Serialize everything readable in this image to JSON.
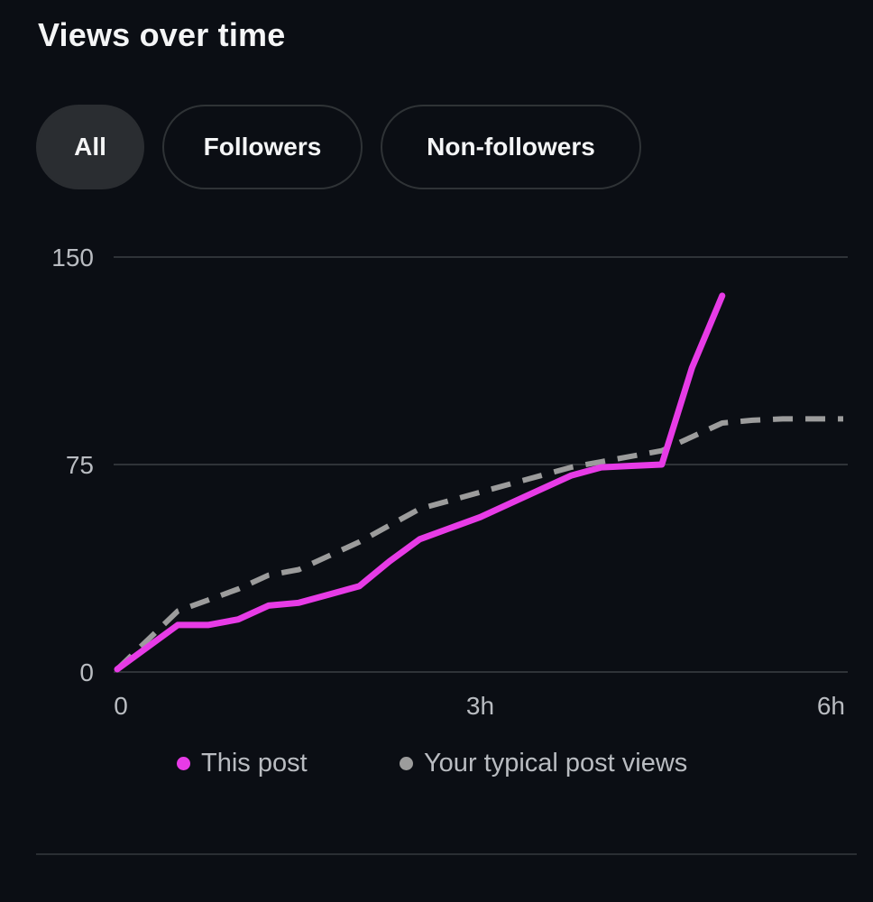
{
  "header": {
    "title": "Views over time"
  },
  "tabs": [
    {
      "label": "All",
      "active": true
    },
    {
      "label": "Followers",
      "active": false
    },
    {
      "label": "Non-followers",
      "active": false
    }
  ],
  "colors": {
    "this_post": "#e73be6",
    "typical": "#9c9c9c",
    "grid": "#2f3338",
    "tick_text": "#b9bcc1",
    "background": "#0b0e14"
  },
  "chart_data": {
    "type": "line",
    "title": "",
    "xlabel": "",
    "ylabel": "",
    "xlim": [
      0,
      6
    ],
    "ylim": [
      0,
      150
    ],
    "x_ticks": [
      {
        "value": 0,
        "label": "0"
      },
      {
        "value": 3,
        "label": "3h"
      },
      {
        "value": 6,
        "label": "6h"
      }
    ],
    "y_ticks": [
      {
        "value": 0,
        "label": "0"
      },
      {
        "value": 75,
        "label": "75"
      },
      {
        "value": 150,
        "label": "150"
      }
    ],
    "grid": true,
    "legend_position": "bottom",
    "series": [
      {
        "name": "This post",
        "style": "solid",
        "x": [
          0,
          0.5,
          0.75,
          1.0,
          1.25,
          1.5,
          1.75,
          2.0,
          2.25,
          2.5,
          2.75,
          3.0,
          3.25,
          3.5,
          3.75,
          4.0,
          4.25,
          4.5,
          4.75,
          5.0
        ],
        "y": [
          1,
          17,
          17,
          19,
          24,
          25,
          28,
          31,
          40,
          48,
          52,
          56,
          61,
          66,
          71,
          74,
          74.5,
          75,
          110,
          136
        ]
      },
      {
        "name": "Your typical post views",
        "style": "dashed",
        "x": [
          0,
          0.5,
          0.75,
          1.0,
          1.25,
          1.5,
          1.75,
          2.0,
          2.25,
          2.5,
          2.75,
          3.0,
          3.25,
          3.5,
          3.75,
          4.0,
          4.25,
          4.5,
          4.75,
          5.0,
          5.25,
          5.5,
          5.75,
          6.0
        ],
        "y": [
          1,
          22,
          26,
          30,
          35,
          37,
          42,
          47,
          53,
          59,
          62,
          65,
          68,
          71,
          74,
          76,
          78,
          80,
          85,
          90,
          91,
          91.5,
          91.5,
          91.5
        ]
      }
    ]
  }
}
